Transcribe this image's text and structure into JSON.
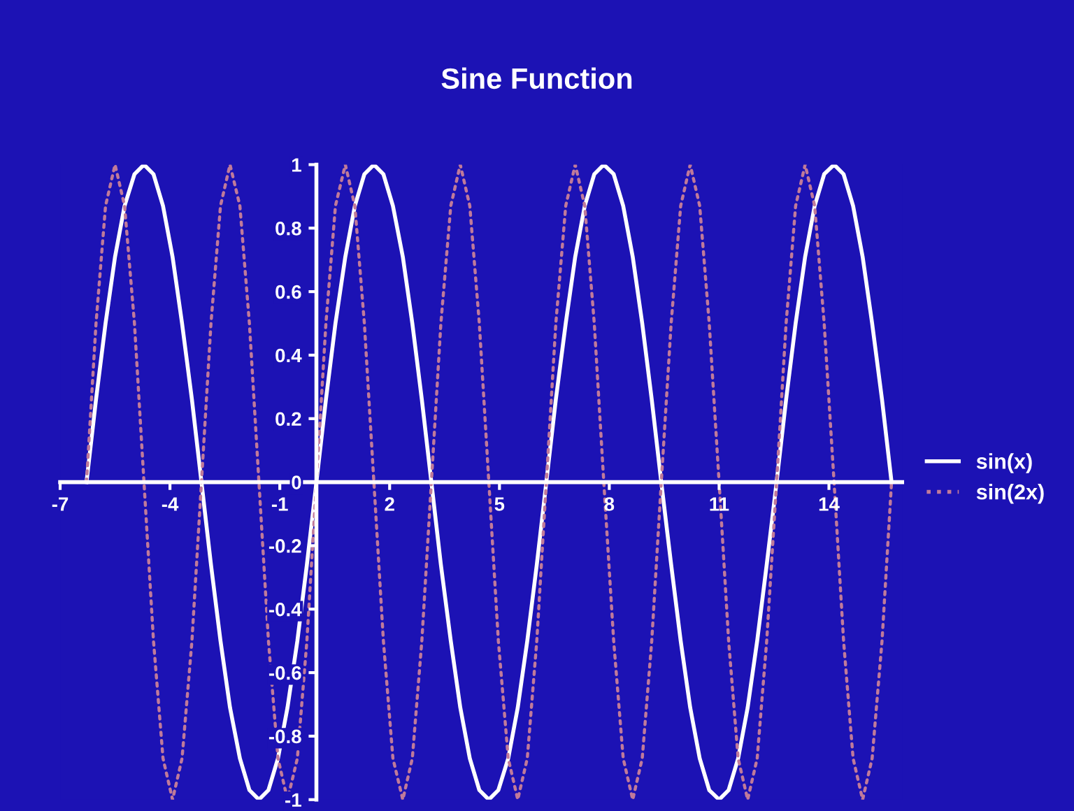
{
  "chart_data": {
    "type": "line",
    "title": "Sine Function",
    "x": [
      -6.28,
      -6.02,
      -5.76,
      -5.5,
      -5.24,
      -4.97,
      -4.71,
      -4.45,
      -4.19,
      -3.93,
      -3.67,
      -3.4,
      -3.14,
      -2.88,
      -2.62,
      -2.36,
      -2.09,
      -1.83,
      -1.57,
      -1.31,
      -1.05,
      -0.79,
      -0.52,
      -0.26,
      0,
      0.26,
      0.52,
      0.79,
      1.05,
      1.31,
      1.57,
      1.83,
      2.09,
      2.36,
      2.62,
      2.88,
      3.14,
      3.4,
      3.67,
      3.93,
      4.19,
      4.45,
      4.71,
      4.97,
      5.24,
      5.5,
      5.76,
      6.02,
      6.28,
      6.54,
      6.81,
      7.07,
      7.33,
      7.59,
      7.85,
      8.12,
      8.38,
      8.64,
      8.9,
      9.16,
      9.42,
      9.69,
      9.95,
      10.21,
      10.47,
      10.73,
      11.0,
      11.26,
      11.52,
      11.78,
      12.04,
      12.3,
      12.57,
      12.83,
      13.09,
      13.35,
      13.61,
      13.87,
      14.14,
      14.4,
      14.66,
      14.92,
      15.18,
      15.45,
      15.71
    ],
    "series": [
      {
        "name": "sin(x)",
        "color": "#ffffff",
        "line_style": "solid",
        "values": [
          0,
          0.26,
          0.5,
          0.71,
          0.87,
          0.97,
          1,
          0.97,
          0.87,
          0.71,
          0.5,
          0.26,
          0,
          -0.26,
          -0.5,
          -0.71,
          -0.87,
          -0.97,
          -1,
          -0.97,
          -0.87,
          -0.71,
          -0.5,
          -0.26,
          0,
          0.26,
          0.5,
          0.71,
          0.87,
          0.97,
          1,
          0.97,
          0.87,
          0.71,
          0.5,
          0.26,
          0,
          -0.26,
          -0.5,
          -0.71,
          -0.87,
          -0.97,
          -1,
          -0.97,
          -0.87,
          -0.71,
          -0.5,
          -0.26,
          0,
          0.26,
          0.5,
          0.71,
          0.87,
          0.97,
          1,
          0.97,
          0.87,
          0.71,
          0.5,
          0.26,
          0,
          -0.26,
          -0.5,
          -0.71,
          -0.87,
          -0.97,
          -1,
          -0.97,
          -0.87,
          -0.71,
          -0.5,
          -0.26,
          0,
          0.26,
          0.5,
          0.71,
          0.87,
          0.97,
          1,
          0.97,
          0.87,
          0.71,
          0.5,
          0.26,
          0
        ]
      },
      {
        "name": "sin(2x)",
        "color": "#c07a9a",
        "line_style": "dotted",
        "values": [
          0,
          0.5,
          0.87,
          1,
          0.87,
          0.5,
          0,
          -0.5,
          -0.87,
          -1,
          -0.87,
          -0.5,
          0,
          0.5,
          0.87,
          1,
          0.87,
          0.5,
          0,
          -0.5,
          -0.87,
          -1,
          -0.87,
          -0.5,
          0,
          0.5,
          0.87,
          1,
          0.87,
          0.5,
          0,
          -0.5,
          -0.87,
          -1,
          -0.87,
          -0.5,
          0,
          0.5,
          0.87,
          1,
          0.87,
          0.5,
          0,
          -0.5,
          -0.87,
          -1,
          -0.87,
          -0.5,
          0,
          0.5,
          0.87,
          1,
          0.87,
          0.5,
          0,
          -0.5,
          -0.87,
          -1,
          -0.87,
          -0.5,
          0,
          0.5,
          0.87,
          1,
          0.87,
          0.5,
          0,
          -0.5,
          -0.87,
          -1,
          -0.87,
          -0.5,
          0,
          0.5,
          0.87,
          1,
          0.87,
          0.5,
          0,
          -0.5,
          -0.87,
          -1,
          -0.87,
          -0.5,
          0
        ]
      }
    ],
    "xlim": [
      -7,
      16
    ],
    "xticks": [
      -7,
      -4,
      -1,
      2,
      5,
      8,
      11,
      14
    ],
    "ylim": [
      -1,
      1
    ],
    "yticks": [
      -1,
      -0.8,
      -0.6,
      -0.4,
      -0.2,
      0,
      0.2,
      0.4,
      0.6,
      0.8,
      1
    ],
    "grid": false,
    "legend": "right",
    "marker": "none"
  }
}
